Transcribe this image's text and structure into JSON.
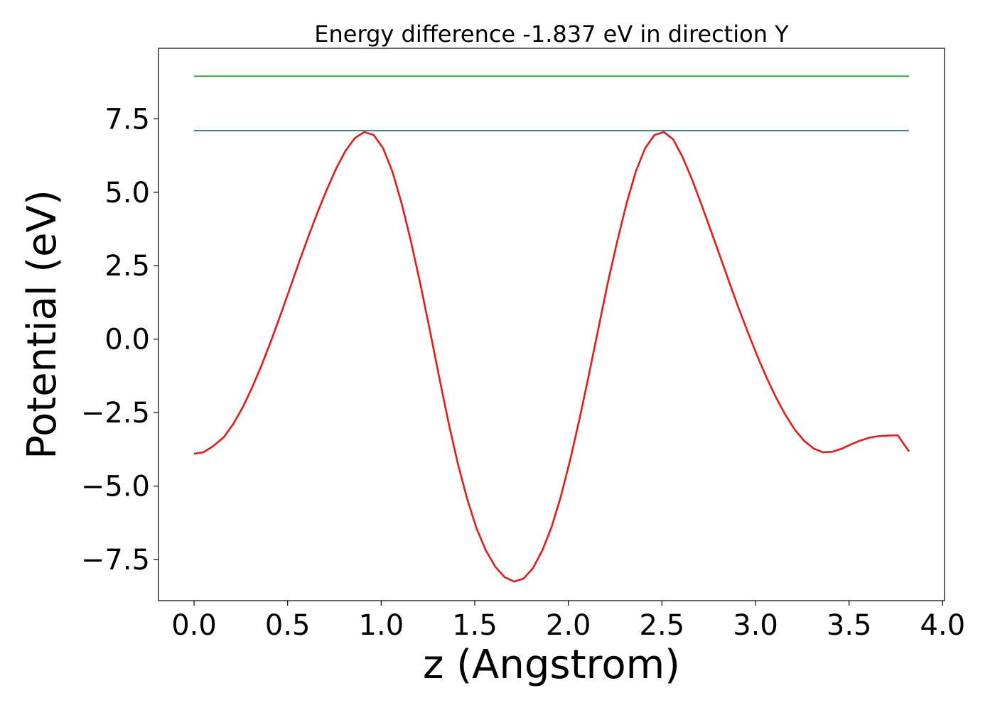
{
  "chart_data": {
    "type": "line",
    "title": "Energy difference -1.837 eV in direction Y",
    "xlabel": "z (Angstrom)",
    "ylabel": "Potential (eV)",
    "xlim": [
      -0.19,
      4.01
    ],
    "ylim": [
      -8.9,
      9.9
    ],
    "xticks": [
      0.0,
      0.5,
      1.0,
      1.5,
      2.0,
      2.5,
      3.0,
      3.5,
      4.0
    ],
    "xtick_labels": [
      "0.0",
      "0.5",
      "1.0",
      "1.5",
      "2.0",
      "2.5",
      "3.0",
      "3.5",
      "4.0"
    ],
    "yticks": [
      -7.5,
      -5.0,
      -2.5,
      0.0,
      2.5,
      5.0,
      7.5
    ],
    "ytick_labels": [
      "−7.5",
      "−5.0",
      "−2.5",
      "0.0",
      "2.5",
      "5.0",
      "7.5"
    ],
    "grid": false,
    "series": [
      {
        "color": "#1f77b4",
        "x": [
          0.0,
          3.82
        ],
        "y": [
          7.1,
          7.1
        ]
      },
      {
        "color": "#2ca02c",
        "x": [
          0.0,
          3.82
        ],
        "y": [
          8.95,
          8.95
        ]
      },
      {
        "color": "#e41a1c",
        "x": [
          0.0,
          0.05,
          0.1,
          0.16,
          0.21,
          0.26,
          0.31,
          0.36,
          0.41,
          0.46,
          0.51,
          0.56,
          0.61,
          0.66,
          0.71,
          0.76,
          0.81,
          0.86,
          0.91,
          0.96,
          1.01,
          1.06,
          1.11,
          1.16,
          1.21,
          1.26,
          1.31,
          1.36,
          1.41,
          1.46,
          1.51,
          1.56,
          1.61,
          1.66,
          1.71,
          1.76,
          1.81,
          1.86,
          1.91,
          1.96,
          2.01,
          2.06,
          2.11,
          2.16,
          2.21,
          2.26,
          2.31,
          2.36,
          2.41,
          2.46,
          2.51,
          2.56,
          2.61,
          2.66,
          2.71,
          2.76,
          2.81,
          2.86,
          2.91,
          2.96,
          3.01,
          3.06,
          3.11,
          3.16,
          3.21,
          3.26,
          3.31,
          3.36,
          3.41,
          3.46,
          3.51,
          3.56,
          3.61,
          3.66,
          3.71,
          3.76,
          3.82
        ],
        "y": [
          -3.9,
          -3.85,
          -3.65,
          -3.33,
          -2.88,
          -2.32,
          -1.65,
          -0.9,
          -0.08,
          0.79,
          1.69,
          2.6,
          3.48,
          4.32,
          5.1,
          5.82,
          6.42,
          6.85,
          7.05,
          6.95,
          6.5,
          5.7,
          4.6,
          3.3,
          1.85,
          0.3,
          -1.3,
          -2.85,
          -4.25,
          -5.45,
          -6.45,
          -7.2,
          -7.75,
          -8.1,
          -8.25,
          -8.15,
          -7.8,
          -7.2,
          -6.4,
          -5.35,
          -4.1,
          -2.7,
          -1.2,
          0.35,
          1.9,
          3.3,
          4.6,
          5.7,
          6.5,
          6.95,
          7.05,
          6.8,
          6.2,
          5.45,
          4.6,
          3.72,
          2.83,
          1.93,
          1.05,
          0.22,
          -0.58,
          -1.32,
          -1.99,
          -2.58,
          -3.08,
          -3.46,
          -3.72,
          -3.85,
          -3.83,
          -3.73,
          -3.58,
          -3.45,
          -3.35,
          -3.3,
          -3.28,
          -3.27,
          -3.82
        ]
      }
    ]
  }
}
